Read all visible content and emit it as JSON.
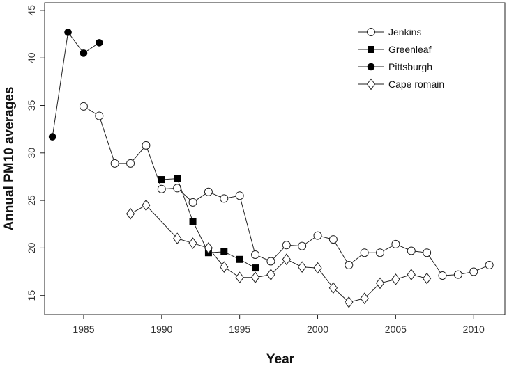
{
  "chart_data": {
    "type": "line",
    "xlabel": "Year",
    "ylabel": "Annual PM10 averages",
    "xlim": [
      1982.5,
      2012.0
    ],
    "ylim": [
      13.0,
      45.8
    ],
    "xticks": [
      1985,
      1990,
      1995,
      2000,
      2005,
      2010
    ],
    "yticks": [
      15,
      20,
      25,
      30,
      35,
      40,
      45
    ],
    "legend_position": "top-right",
    "grid": false,
    "series": [
      {
        "name": "Jenkins",
        "marker": "open-circle",
        "x": [
          1985,
          1986,
          1987,
          1988,
          1989,
          1990,
          1991,
          1992,
          1993,
          1994,
          1995,
          1996,
          1997,
          1998,
          1999,
          2000,
          2001,
          2002,
          2003,
          2004,
          2005,
          2006,
          2007,
          2008,
          2009,
          2010,
          2011
        ],
        "y": [
          34.9,
          33.9,
          28.9,
          28.9,
          30.8,
          26.2,
          26.3,
          24.8,
          25.9,
          25.2,
          25.5,
          19.3,
          18.6,
          20.3,
          20.2,
          21.3,
          20.9,
          18.2,
          19.5,
          19.5,
          20.4,
          19.7,
          19.5,
          17.1,
          17.2,
          17.5,
          18.2
        ]
      },
      {
        "name": "Greenleaf",
        "marker": "filled-square",
        "x": [
          1990,
          1991,
          1992,
          1993,
          1994,
          1995,
          1996
        ],
        "y": [
          27.2,
          27.3,
          22.8,
          19.5,
          19.6,
          18.8,
          17.9
        ]
      },
      {
        "name": "Pittsburgh",
        "marker": "filled-circle",
        "x": [
          1983,
          1984,
          1985,
          1986
        ],
        "y": [
          31.7,
          42.7,
          40.5,
          41.6
        ]
      },
      {
        "name": "Cape romain",
        "marker": "open-diamond",
        "x": [
          1988,
          1989,
          1991,
          1992,
          1993,
          1994,
          1995,
          1996,
          1997,
          1998,
          1999,
          2000,
          2001,
          2002,
          2003,
          2004,
          2005,
          2006,
          2007
        ],
        "y": [
          23.6,
          24.5,
          21.0,
          20.5,
          20.0,
          18.0,
          16.9,
          16.9,
          17.2,
          18.8,
          18.0,
          17.9,
          15.8,
          14.3,
          14.7,
          16.3,
          16.7,
          17.2,
          16.8
        ]
      }
    ]
  }
}
